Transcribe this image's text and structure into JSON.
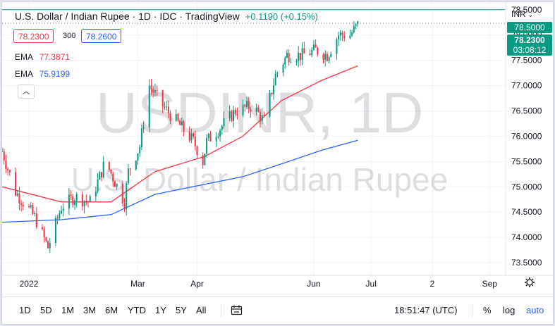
{
  "header": {
    "title": "U.S. Dollar / Indian Rupee · 1D · IDC · TradingView",
    "change": "+0.1190 (+0.15%)",
    "currency": "INR",
    "sell_price": "78.2300",
    "spread": "300",
    "buy_price": "78.2600"
  },
  "indicators": [
    {
      "label": "EMA",
      "value": "77.3871",
      "color": "#f23645"
    },
    {
      "label": "EMA",
      "value": "75.9199",
      "color": "#2962ff"
    }
  ],
  "watermark": {
    "line1": "USDINR, 1D",
    "line2": "U.S. Dollar / Indian Rupee"
  },
  "price_scale": {
    "current_price": "78.2300",
    "countdown": "03:08:12",
    "line_price": "78.5000"
  },
  "bottom_bar": {
    "timeframes": [
      "1D",
      "5D",
      "1M",
      "3M",
      "6M",
      "YTD",
      "1Y",
      "5Y",
      "All"
    ],
    "clock": "18:51:47 (UTC)",
    "percent_label": "%",
    "log_label": "log",
    "auto_label": "auto"
  },
  "colors": {
    "up": "#089981",
    "down": "#f23645",
    "ema_fast": "#f23645",
    "ema_slow": "#2962ff",
    "accent": "#2962ff"
  },
  "chart_data": {
    "type": "candlestick",
    "symbol": "USDINR",
    "interval": "1D",
    "y_ticks": [
      73.5,
      74.0,
      74.5,
      75.0,
      75.5,
      76.0,
      76.5,
      77.0,
      77.5,
      78.0,
      78.5
    ],
    "ylim": [
      73.25,
      78.65
    ],
    "x_range": [
      "2021-12-20",
      "2022-09-09"
    ],
    "x_ticks": [
      {
        "label": "2022",
        "date": "2022-01-03"
      },
      {
        "label": "Mar",
        "date": "2022-03-01"
      },
      {
        "label": "Apr",
        "date": "2022-04-01"
      },
      {
        "label": "Jun",
        "date": "2022-06-01"
      },
      {
        "label": "Jul",
        "date": "2022-07-01"
      },
      {
        "label": "2",
        "date": "2022-08-02"
      },
      {
        "label": "Sep",
        "date": "2022-09-01"
      }
    ],
    "ohlc_keypoints": [
      [
        "2021-12-20",
        75.7
      ],
      [
        "2021-12-27",
        74.9
      ],
      [
        "2022-01-06",
        74.4
      ],
      [
        "2022-01-13",
        73.8
      ],
      [
        "2022-01-20",
        74.6
      ],
      [
        "2022-01-27",
        74.8
      ],
      [
        "2022-02-04",
        74.7
      ],
      [
        "2022-02-12",
        75.5
      ],
      [
        "2022-02-22",
        74.7
      ],
      [
        "2022-02-24",
        75.3
      ],
      [
        "2022-03-02",
        75.8
      ],
      [
        "2022-03-07",
        77.0
      ],
      [
        "2022-03-14",
        76.6
      ],
      [
        "2022-03-21",
        76.3
      ],
      [
        "2022-03-30",
        75.9
      ],
      [
        "2022-04-04",
        75.5
      ],
      [
        "2022-04-06",
        75.9
      ],
      [
        "2022-04-14",
        76.2
      ],
      [
        "2022-04-21",
        76.5
      ],
      [
        "2022-04-30",
        76.6
      ],
      [
        "2022-05-06",
        76.3
      ],
      [
        "2022-05-12",
        77.2
      ],
      [
        "2022-05-18",
        77.6
      ],
      [
        "2022-05-26",
        77.6
      ],
      [
        "2022-06-02",
        77.7
      ],
      [
        "2022-06-08",
        77.6
      ],
      [
        "2022-06-14",
        78.0
      ],
      [
        "2022-06-20",
        78.0
      ],
      [
        "2022-06-24",
        78.2
      ]
    ],
    "ema_fast": [
      [
        "2021-12-20",
        75.0
      ],
      [
        "2022-01-20",
        74.7
      ],
      [
        "2022-02-15",
        74.7
      ],
      [
        "2022-03-10",
        75.3
      ],
      [
        "2022-04-05",
        75.6
      ],
      [
        "2022-04-25",
        76.0
      ],
      [
        "2022-05-15",
        76.7
      ],
      [
        "2022-06-05",
        77.1
      ],
      [
        "2022-06-24",
        77.39
      ]
    ],
    "ema_slow": [
      [
        "2021-12-20",
        74.3
      ],
      [
        "2022-01-20",
        74.35
      ],
      [
        "2022-02-15",
        74.45
      ],
      [
        "2022-03-10",
        74.85
      ],
      [
        "2022-04-05",
        75.05
      ],
      [
        "2022-04-25",
        75.2
      ],
      [
        "2022-05-15",
        75.45
      ],
      [
        "2022-06-05",
        75.72
      ],
      [
        "2022-06-24",
        75.92
      ]
    ]
  }
}
